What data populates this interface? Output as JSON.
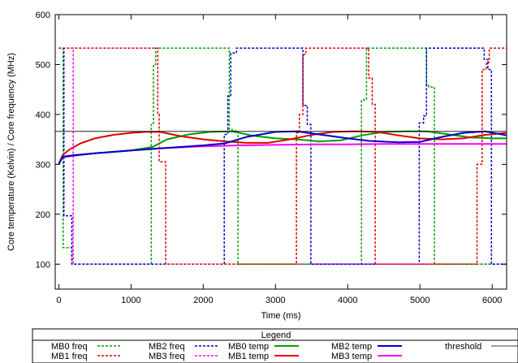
{
  "chart_data": {
    "type": "line",
    "title": "",
    "xlabel": "Time (ms)",
    "ylabel": "Core temperature (Kelvin) / Core frequency (MHz)",
    "xlim": [
      -50,
      6200
    ],
    "ylim": [
      50,
      600
    ],
    "xticks": [
      0,
      1000,
      2000,
      3000,
      4000,
      5000,
      6000
    ],
    "yticks": [
      100,
      200,
      300,
      400,
      500,
      600
    ],
    "grid": false,
    "legend": {
      "title": "Legend",
      "placement": "bottom",
      "entries": [
        "MB0 freq",
        "MB1 freq",
        "MB2 freq",
        "MB3 freq",
        "MB0 temp",
        "MB1 temp",
        "MB2 temp",
        "MB3 temp",
        "threshold"
      ]
    },
    "colors": {
      "MB0": "#00a000",
      "MB1": "#e00000",
      "MB2": "#0000c8",
      "MB3": "#ff00ff",
      "threshold": "#000000"
    },
    "threshold": 366,
    "series": [
      {
        "name": "MB0 freq",
        "style": "dashed",
        "color": "#00a000",
        "x": [
          0,
          60,
          60,
          180,
          180,
          1280,
          1280,
          1310,
          1310,
          1340,
          1340,
          2360,
          2360,
          2400,
          2400,
          2480,
          2480,
          4190,
          4190,
          4220,
          4220,
          4260,
          4260,
          5090,
          5090,
          5120,
          5120,
          5200,
          5200,
          6200
        ],
        "y": [
          533,
          533,
          133,
          133,
          100,
          100,
          380,
          380,
          500,
          500,
          533,
          533,
          370,
          370,
          367,
          367,
          100,
          100,
          428,
          428,
          430,
          430,
          533,
          533,
          460,
          460,
          455,
          455,
          100,
          100
        ]
      },
      {
        "name": "MB1 freq",
        "style": "dashed",
        "color": "#e00000",
        "x": [
          0,
          1370,
          1370,
          1390,
          1390,
          1480,
          1480,
          3290,
          3290,
          3330,
          3330,
          3380,
          3380,
          3420,
          3420,
          4290,
          4290,
          4340,
          4340,
          4380,
          4380,
          5790,
          5790,
          5860,
          5860,
          5920,
          5920,
          5960,
          5960,
          6200
        ],
        "y": [
          533,
          533,
          400,
          400,
          305,
          305,
          100,
          100,
          363,
          363,
          400,
          400,
          520,
          520,
          533,
          533,
          473,
          473,
          420,
          420,
          100,
          100,
          300,
          300,
          490,
          490,
          505,
          505,
          533,
          533
        ]
      },
      {
        "name": "MB2 freq",
        "style": "dashed",
        "color": "#0000c8",
        "x": [
          0,
          70,
          70,
          180,
          180,
          2290,
          2290,
          2340,
          2340,
          2380,
          2380,
          2460,
          2460,
          3380,
          3380,
          3440,
          3440,
          3490,
          3490,
          4990,
          4990,
          5050,
          5050,
          5090,
          5090,
          5890,
          5890,
          5940,
          5940,
          5990,
          5990,
          6200
        ],
        "y": [
          533,
          533,
          197,
          197,
          100,
          100,
          360,
          360,
          437,
          437,
          523,
          523,
          533,
          533,
          418,
          418,
          380,
          380,
          100,
          100,
          383,
          383,
          397,
          397,
          533,
          533,
          510,
          510,
          490,
          490,
          100,
          100
        ]
      },
      {
        "name": "MB3 freq",
        "style": "dashed",
        "color": "#ff00ff",
        "x": [
          0,
          80,
          80,
          200,
          200,
          6200
        ],
        "y": [
          533,
          533,
          533,
          533,
          100,
          100
        ]
      },
      {
        "name": "MB0 temp",
        "style": "solid",
        "color": "#00a000",
        "x": [
          0,
          50,
          200,
          500,
          1000,
          1300,
          1500,
          1800,
          2100,
          2400,
          2700,
          3000,
          3300,
          3600,
          3900,
          4200,
          4500,
          4800,
          5100,
          5400,
          5700,
          6000,
          6200
        ],
        "y": [
          300,
          315,
          318,
          322,
          328,
          335,
          350,
          360,
          365,
          366,
          357,
          352,
          350,
          346,
          348,
          358,
          365,
          366,
          366,
          360,
          354,
          352,
          352
        ]
      },
      {
        "name": "MB1 temp",
        "style": "solid",
        "color": "#e00000",
        "x": [
          0,
          50,
          150,
          300,
          500,
          750,
          1000,
          1200,
          1400,
          1700,
          2000,
          2300,
          2600,
          2900,
          3200,
          3500,
          3800,
          4100,
          4400,
          4700,
          5000,
          5300,
          5600,
          5900,
          6200
        ],
        "y": [
          300,
          318,
          330,
          342,
          352,
          359,
          363,
          365,
          365,
          356,
          350,
          346,
          343,
          343,
          350,
          359,
          365,
          366,
          365,
          358,
          352,
          350,
          352,
          359,
          363
        ]
      },
      {
        "name": "MB2 temp",
        "style": "solid",
        "color": "#0000c8",
        "x": [
          0,
          50,
          200,
          500,
          1000,
          1500,
          2000,
          2300,
          2600,
          3000,
          3300,
          3600,
          4000,
          4300,
          4700,
          5000,
          5300,
          5600,
          5900,
          6200
        ],
        "y": [
          300,
          315,
          318,
          322,
          328,
          333,
          338,
          342,
          355,
          365,
          366,
          360,
          352,
          347,
          344,
          345,
          355,
          363,
          366,
          358
        ]
      },
      {
        "name": "MB3 temp",
        "style": "solid",
        "color": "#ff00ff",
        "x": [
          0,
          50,
          200,
          500,
          1000,
          1500,
          2000,
          2500,
          3000,
          3500,
          4000,
          4500,
          5000,
          5500,
          6000,
          6200
        ],
        "y": [
          300,
          314,
          317,
          322,
          328,
          333,
          336,
          338,
          339,
          340,
          340,
          341,
          341,
          341,
          341,
          341
        ]
      },
      {
        "name": "threshold",
        "style": "thin",
        "color": "#000000",
        "x": [
          -50,
          6200
        ],
        "y": [
          366,
          366
        ]
      }
    ]
  }
}
